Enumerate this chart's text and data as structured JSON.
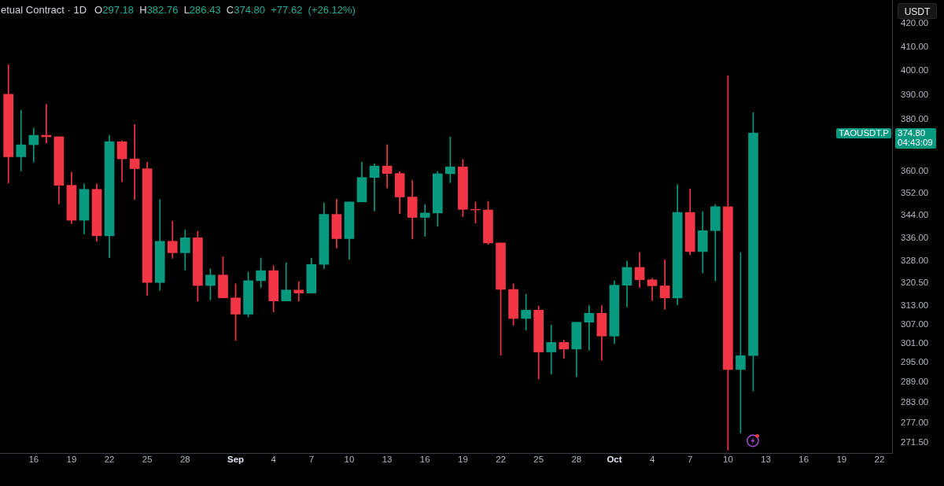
{
  "chart_data": {
    "type": "candlestick",
    "title": "etual Contract · 1D",
    "subtitle": "O297.18 H382.76 L286.43 C374.80 +77.62 (+26.12%)",
    "ylabel": "USDT",
    "log": true,
    "annotations": [
      "TAOUSDT.P",
      "374.80",
      "04:43:09"
    ],
    "x": [
      "--08-14",
      "--08-15",
      "--08-16",
      "--08-17",
      "--08-18",
      "--08-19",
      "--08-20",
      "--08-21",
      "--08-22",
      "--08-23",
      "--08-24",
      "--08-25",
      "--08-26",
      "--08-27",
      "--08-28",
      "--08-29",
      "--08-30",
      "--08-31",
      "--09-01",
      "--09-02",
      "--09-03",
      "--09-04",
      "--09-05",
      "--09-06",
      "--09-07",
      "--09-08",
      "--09-09",
      "--09-10",
      "--09-11",
      "--09-12",
      "--09-13",
      "--09-14",
      "--09-15",
      "--09-16",
      "--09-17",
      "--09-18",
      "--09-19",
      "--09-20",
      "--09-21",
      "--09-22",
      "--09-23",
      "--09-24",
      "--09-25",
      "--09-26",
      "--09-27",
      "--09-28",
      "--09-29",
      "--09-30",
      "--10-01",
      "--10-02",
      "--10-03",
      "--10-04",
      "--10-05",
      "--10-06",
      "--10-07",
      "--10-08",
      "--10-09",
      "--10-10",
      "--10-11",
      "--10-12"
    ],
    "ohlc": [
      [
        390.2,
        402.4,
        355.7,
        365.6
      ],
      [
        365.6,
        383.8,
        360.3,
        370.2
      ],
      [
        370.2,
        376.7,
        363.6,
        373.9
      ],
      [
        373.9,
        386.1,
        370.9,
        373.3
      ],
      [
        373.3,
        373.3,
        348.1,
        354.9
      ],
      [
        354.9,
        359.8,
        341.0,
        342.2
      ],
      [
        342.2,
        355.4,
        337.3,
        353.4
      ],
      [
        353.4,
        355.4,
        334.8,
        336.7
      ],
      [
        336.7,
        373.9,
        329.1,
        371.4
      ],
      [
        371.4,
        371.7,
        356.2,
        364.8
      ],
      [
        364.8,
        378.1,
        349.7,
        361.1
      ],
      [
        361.1,
        363.6,
        316.4,
        320.7
      ],
      [
        320.7,
        349.7,
        318.1,
        334.8
      ],
      [
        334.8,
        341.9,
        328.9,
        330.8
      ],
      [
        330.8,
        338.8,
        324.9,
        336.0
      ],
      [
        336.0,
        338.3,
        314.5,
        319.7
      ],
      [
        319.7,
        325.3,
        314.9,
        323.2
      ],
      [
        323.2,
        329.4,
        315.6,
        315.6
      ],
      [
        315.6,
        320.3,
        301.9,
        310.3
      ],
      [
        310.3,
        324.2,
        309.4,
        321.3
      ],
      [
        321.3,
        329.0,
        319.0,
        324.7
      ],
      [
        324.7,
        326.4,
        311.0,
        314.6
      ],
      [
        314.6,
        327.4,
        314.6,
        318.2
      ],
      [
        318.2,
        321.0,
        314.5,
        317.2
      ],
      [
        317.2,
        328.9,
        317.2,
        326.8
      ],
      [
        326.8,
        348.4,
        325.4,
        344.3
      ],
      [
        344.3,
        349.8,
        332.4,
        335.7
      ],
      [
        335.7,
        348.8,
        328.5,
        348.8
      ],
      [
        348.8,
        363.6,
        348.8,
        357.8
      ],
      [
        357.8,
        362.9,
        345.5,
        362.1
      ],
      [
        362.1,
        370.2,
        353.9,
        359.3
      ],
      [
        359.3,
        360.0,
        344.6,
        350.6
      ],
      [
        350.6,
        356.7,
        335.6,
        343.2
      ],
      [
        343.2,
        347.9,
        336.5,
        344.8
      ],
      [
        344.8,
        360.0,
        340.1,
        359.2
      ],
      [
        359.2,
        373.3,
        355.9,
        361.8
      ],
      [
        361.8,
        364.6,
        343.5,
        346.1
      ],
      [
        346.1,
        348.8,
        341.2,
        345.9
      ],
      [
        345.9,
        349.0,
        333.7,
        334.2
      ],
      [
        334.2,
        334.2,
        297.3,
        318.4
      ],
      [
        318.4,
        320.3,
        306.7,
        308.9
      ],
      [
        308.9,
        316.8,
        305.2,
        311.6
      ],
      [
        311.6,
        312.9,
        290.0,
        298.3
      ],
      [
        298.3,
        306.8,
        291.5,
        301.3
      ],
      [
        301.3,
        302.0,
        296.3,
        299.2
      ],
      [
        299.2,
        307.7,
        290.7,
        307.7
      ],
      [
        307.7,
        313.1,
        298.8,
        310.6
      ],
      [
        310.6,
        313.1,
        295.7,
        303.3
      ],
      [
        303.3,
        321.3,
        300.9,
        319.8
      ],
      [
        319.8,
        328.0,
        312.7,
        325.8
      ],
      [
        325.8,
        330.9,
        319.0,
        321.6
      ],
      [
        321.6,
        322.1,
        314.7,
        319.6
      ],
      [
        319.6,
        328.4,
        311.9,
        315.6
      ],
      [
        315.6,
        355.1,
        313.3,
        345.0
      ],
      [
        345.0,
        353.6,
        330.1,
        331.2
      ],
      [
        331.2,
        345.3,
        323.9,
        338.5
      ],
      [
        338.5,
        347.9,
        321.2,
        347.1
      ],
      [
        347.1,
        397.8,
        269.3,
        292.9
      ],
      [
        292.9,
        330.9,
        274.1,
        297.18
      ],
      [
        297.18,
        382.76,
        286.43,
        374.8
      ]
    ],
    "colors": [
      "#f23645",
      "#089981",
      "#089981",
      "#f23645",
      "#f23645",
      "#f23645",
      "#089981",
      "#f23645",
      "#089981",
      "#f23645",
      "#f23645",
      "#f23645",
      "#089981",
      "#f23645",
      "#089981",
      "#f23645",
      "#089981",
      "#f23645",
      "#f23645",
      "#089981",
      "#089981",
      "#f23645",
      "#089981",
      "#f23645",
      "#089981",
      "#089981",
      "#f23645",
      "#089981",
      "#089981",
      "#089981",
      "#f23645",
      "#f23645",
      "#f23645",
      "#089981",
      "#089981",
      "#089981",
      "#f23645",
      "#f23645",
      "#f23645",
      "#f23645",
      "#f23645",
      "#089981",
      "#f23645",
      "#089981",
      "#f23645",
      "#089981",
      "#089981",
      "#f23645",
      "#089981",
      "#089981",
      "#f23645",
      "#f23645",
      "#f23645",
      "#089981",
      "#f23645",
      "#089981",
      "#089981",
      "#f23645",
      "#089981",
      "#089981"
    ],
    "xlim": [
      "--08-13T08:00",
      "--10-23"
    ],
    "xticks": [
      {
        "value": "--08-16",
        "label": "16"
      },
      {
        "value": "--08-19",
        "label": "19"
      },
      {
        "value": "--08-22",
        "label": "22"
      },
      {
        "value": "--08-25",
        "label": "25"
      },
      {
        "value": "--08-28",
        "label": "28"
      },
      {
        "value": "--09-01",
        "label": "Sep"
      },
      {
        "value": "--09-04",
        "label": "4"
      },
      {
        "value": "--09-07",
        "label": "7"
      },
      {
        "value": "--09-10",
        "label": "10"
      },
      {
        "value": "--09-13",
        "label": "13"
      },
      {
        "value": "--09-16",
        "label": "16"
      },
      {
        "value": "--09-19",
        "label": "19"
      },
      {
        "value": "--09-22",
        "label": "22"
      },
      {
        "value": "--09-25",
        "label": "25"
      },
      {
        "value": "--09-28",
        "label": "28"
      },
      {
        "value": "--10-01",
        "label": "Oct"
      },
      {
        "value": "--10-04",
        "label": "4"
      },
      {
        "value": "--10-07",
        "label": "7"
      },
      {
        "value": "--10-10",
        "label": "10"
      },
      {
        "value": "--10-13",
        "label": "13"
      },
      {
        "value": "--10-16",
        "label": "16"
      },
      {
        "value": "--10-19",
        "label": "19"
      },
      {
        "value": "--10-22",
        "label": "22"
      }
    ],
    "ylim": [
      268.5,
      430.5
    ],
    "yticks": [
      {
        "value": 420,
        "label": "420.00"
      },
      {
        "value": 410,
        "label": "410.00"
      },
      {
        "value": 400,
        "label": "400.00"
      },
      {
        "value": 390,
        "label": "390.00"
      },
      {
        "value": 380,
        "label": "380.00"
      },
      {
        "value": 360,
        "label": "360.00"
      },
      {
        "value": 352,
        "label": "352.00"
      },
      {
        "value": 344,
        "label": "344.00"
      },
      {
        "value": 336,
        "label": "336.00"
      },
      {
        "value": 328,
        "label": "328.00"
      },
      {
        "value": 320.5,
        "label": "320.50"
      },
      {
        "value": 313,
        "label": "313.00"
      },
      {
        "value": 307,
        "label": "307.00"
      },
      {
        "value": 301,
        "label": "301.00"
      },
      {
        "value": 295,
        "label": "295.00"
      },
      {
        "value": 289,
        "label": "289.00"
      },
      {
        "value": 283,
        "label": "283.00"
      },
      {
        "value": 277,
        "label": "277.00"
      },
      {
        "value": 271.5,
        "label": "271.50"
      }
    ]
  }
}
